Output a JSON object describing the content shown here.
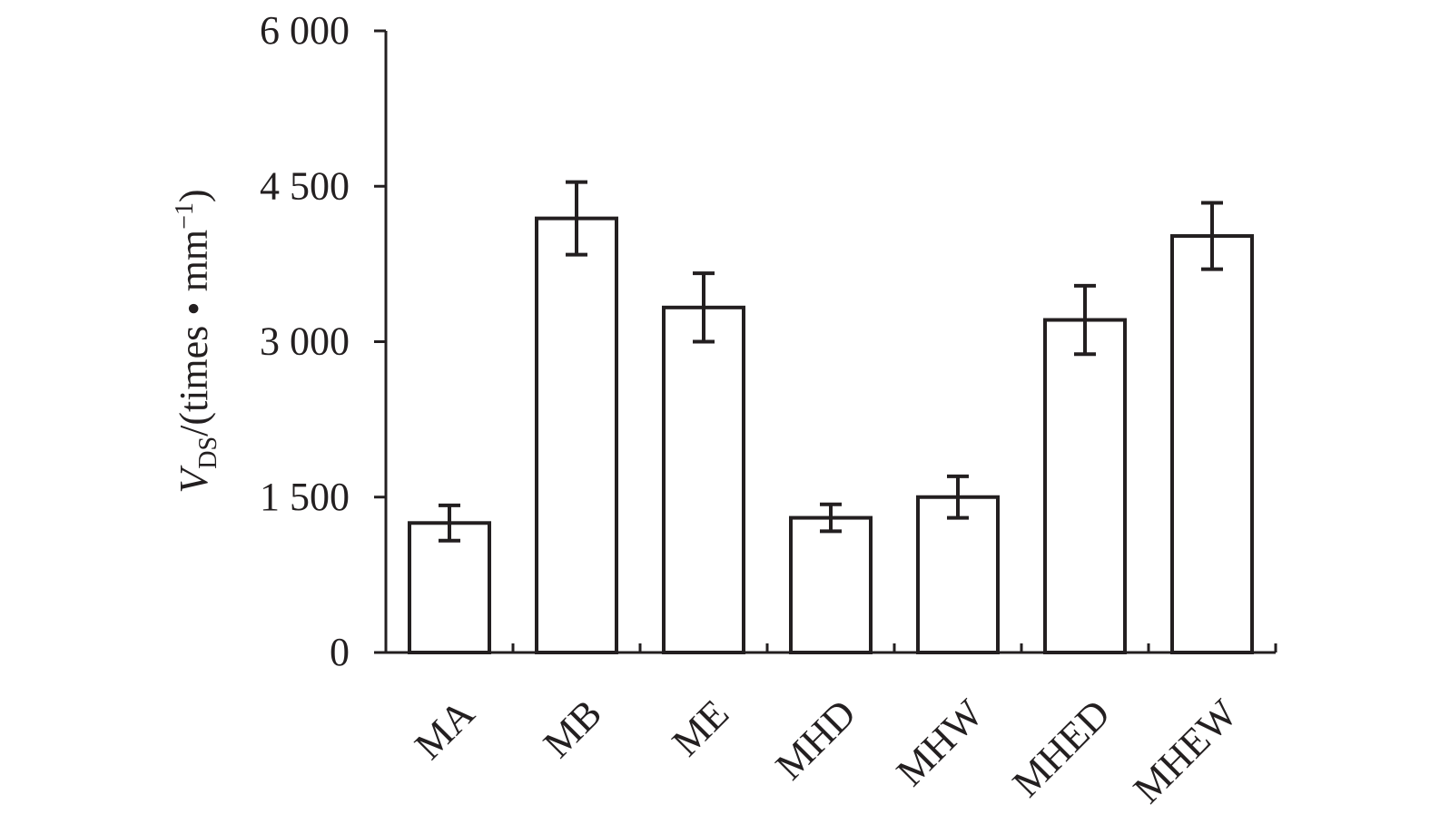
{
  "chart_data": {
    "type": "bar",
    "ylabel": [
      "V",
      "DS",
      "/(times • mm",
      "−1",
      ")"
    ],
    "categories": [
      "MA",
      "MB",
      "ME",
      "MHD",
      "MHW",
      "MHED",
      "MHEW"
    ],
    "values": [
      1250,
      4190,
      3330,
      1300,
      1500,
      3210,
      4020
    ],
    "errors": [
      170,
      350,
      330,
      130,
      200,
      330,
      320
    ],
    "color": "#ffffff",
    "ylim": [
      0,
      6000
    ],
    "yticks": [
      0,
      {
        "value": 1500,
        "label": "1 500"
      },
      {
        "value": 3000,
        "label": "3 000"
      },
      {
        "value": 4500,
        "label": "4 500"
      },
      {
        "value": 6000,
        "label": "6 000"
      }
    ],
    "grid": false
  }
}
